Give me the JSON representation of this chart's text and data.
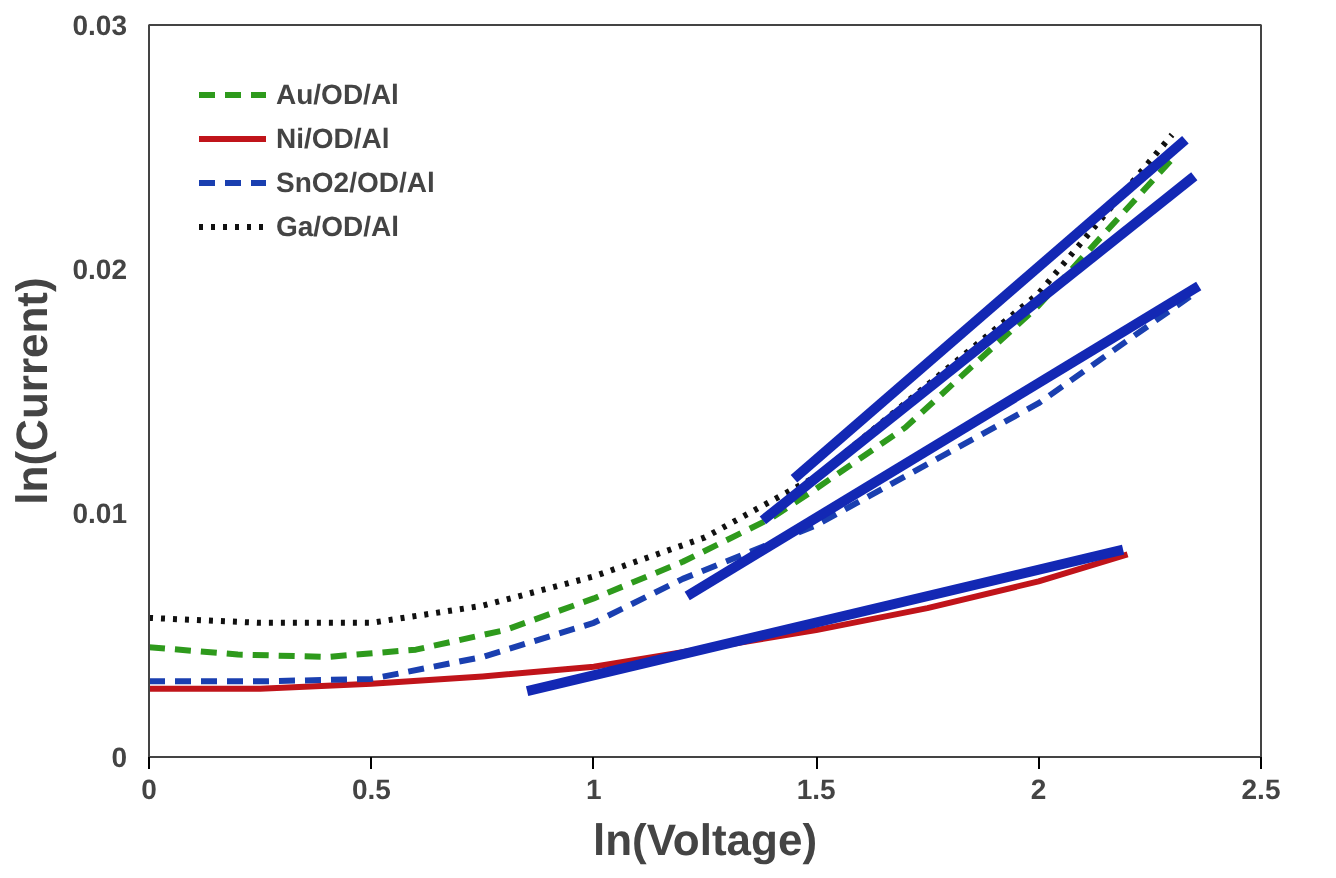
{
  "chart_data": {
    "type": "line",
    "xlabel": "ln(Voltage)",
    "ylabel": "ln(Current)",
    "xlim": [
      0,
      2.5
    ],
    "ylim": [
      0,
      0.03
    ],
    "xticks": [
      0,
      0.5,
      1,
      1.5,
      2,
      2.5
    ],
    "yticks": [
      0,
      0.01,
      0.02,
      0.03
    ],
    "grid": false,
    "legend": "top left",
    "series": [
      {
        "name": "Au/OD/Al",
        "color": "#2e9a1c",
        "line_style": "dashed",
        "x": [
          0,
          0.2,
          0.4,
          0.6,
          0.8,
          1,
          1.2,
          1.4,
          1.5,
          1.7,
          2,
          2.3
        ],
        "values": [
          0.0045,
          0.0042,
          0.0041,
          0.0044,
          0.0052,
          0.0065,
          0.008,
          0.0098,
          0.011,
          0.0135,
          0.0185,
          0.0245
        ]
      },
      {
        "name": "Ni/OD/Al",
        "color": "#c0141a",
        "line_style": "solid",
        "x": [
          0,
          0.25,
          0.5,
          0.75,
          1,
          1.1,
          1.5,
          1.75,
          2,
          2.2
        ],
        "values": [
          0.0028,
          0.0028,
          0.003,
          0.0033,
          0.0037,
          0.004,
          0.0052,
          0.0061,
          0.0072,
          0.0083
        ]
      },
      {
        "name": "SnO2/OD/Al",
        "color": "#1a3fb0",
        "line_style": "dashed",
        "x": [
          0,
          0.25,
          0.5,
          0.75,
          1,
          1.2,
          1.5,
          1.75,
          2,
          2.35
        ],
        "values": [
          0.0031,
          0.0031,
          0.0032,
          0.0041,
          0.0055,
          0.0073,
          0.0095,
          0.012,
          0.0145,
          0.019
        ]
      },
      {
        "name": "Ga/OD/Al",
        "color": "#111111",
        "line_style": "dotted",
        "x": [
          0,
          0.25,
          0.5,
          0.75,
          1,
          1.25,
          1.5,
          2,
          2.3
        ],
        "values": [
          0.0057,
          0.0055,
          0.0055,
          0.0062,
          0.0074,
          0.009,
          0.0115,
          0.019,
          0.0255
        ]
      },
      {
        "color": "#1328b4",
        "line_style": "solid",
        "x": [
          1.45,
          2.33
        ],
        "values": [
          0.0114,
          0.0253
        ]
      },
      {
        "color": "#1328b4",
        "line_style": "solid",
        "x": [
          1.38,
          2.35
        ],
        "values": [
          0.0097,
          0.0238
        ]
      },
      {
        "color": "#1328b4",
        "line_style": "solid",
        "x": [
          1.21,
          2.36
        ],
        "values": [
          0.0066,
          0.0193
        ]
      },
      {
        "color": "#1328b4",
        "line_style": "solid",
        "x": [
          0.85,
          2.19
        ],
        "values": [
          0.0027,
          0.0085
        ]
      }
    ]
  }
}
